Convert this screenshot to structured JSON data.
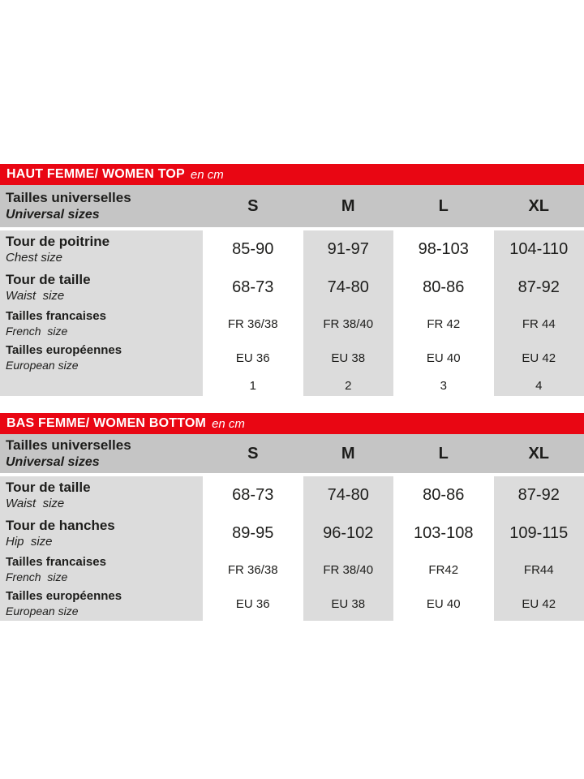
{
  "colors": {
    "red": "#e90613",
    "gray-header": "#c5c5c5",
    "gray-cell": "#dcdcdc",
    "text": "#1d1d1b"
  },
  "tables": [
    {
      "title": "HAUT FEMME/ WOMEN TOP",
      "unit": "en cm",
      "header": {
        "label_fr": "Tailles universelles",
        "label_en": "Universal sizes",
        "sizes": [
          "S",
          "M",
          "L",
          "XL"
        ]
      },
      "rows": [
        {
          "fr": "Tour de poitrine",
          "en": "Chest size",
          "values": [
            "85-90",
            "91-97",
            "98-103",
            "104-110"
          ]
        },
        {
          "fr": "Tour de taille",
          "en": "Waist  size",
          "values": [
            "68-73",
            "74-80",
            "80-86",
            "87-92"
          ]
        },
        {
          "fr": "Tailles francaises",
          "en": "French  size",
          "values": [
            "FR 36/38",
            "FR 38/40",
            "FR 42",
            "FR 44"
          ]
        },
        {
          "fr": "Tailles européennes",
          "en": "European size",
          "values": [
            "EU 36",
            "EU 38",
            "EU 40",
            "EU 42"
          ]
        },
        {
          "fr": "",
          "en": "",
          "values": [
            "1",
            "2",
            "3",
            "4"
          ]
        }
      ]
    },
    {
      "title": "BAS FEMME/ WOMEN BOTTOM",
      "unit": "en cm",
      "header": {
        "label_fr": "Tailles universelles",
        "label_en": "Universal sizes",
        "sizes": [
          "S",
          "M",
          "L",
          "XL"
        ]
      },
      "rows": [
        {
          "fr": "Tour de taille",
          "en": "Waist  size",
          "values": [
            "68-73",
            "74-80",
            "80-86",
            "87-92"
          ]
        },
        {
          "fr": "Tour de hanches",
          "en": "Hip  size",
          "values": [
            "89-95",
            "96-102",
            "103-108",
            "109-115"
          ]
        },
        {
          "fr": "Tailles francaises",
          "en": "French  size",
          "values": [
            "FR 36/38",
            "FR 38/40",
            "FR42",
            "FR44"
          ]
        },
        {
          "fr": "Tailles européennes",
          "en": "European size",
          "values": [
            "EU 36",
            "EU 38",
            "EU 40",
            "EU 42"
          ]
        }
      ]
    }
  ]
}
